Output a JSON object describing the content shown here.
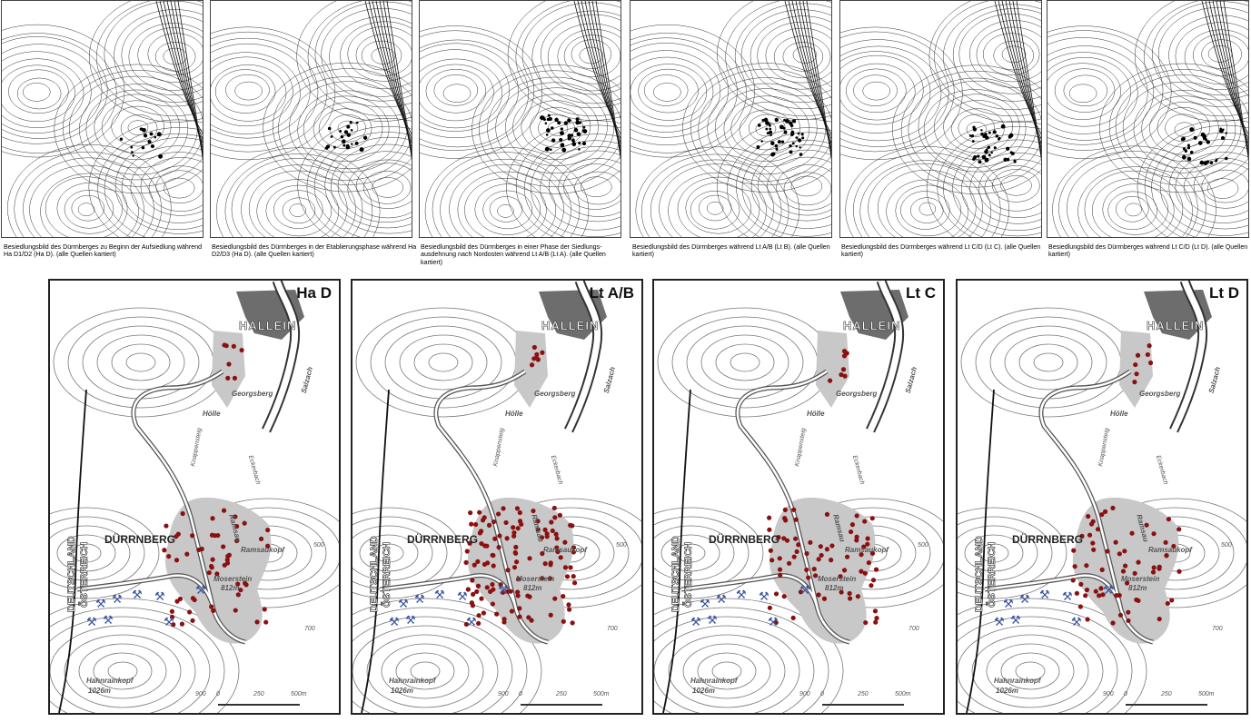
{
  "top_panels": [
    {
      "caption": "Besiedlungsbild des Dürrnberges zu Beginn der Aufsiedlung während Ha D1/D2 (Ha D). (alle Quellen kartiert)"
    },
    {
      "caption": "Besiedlungsbild des Dürrnberges in der Etablierungsphase während Ha D2/D3 (Ha D). (alle Quellen kartiert)"
    },
    {
      "caption": "Besiedlungsbild des Dürrnberges in einer Phase der Siedlungs-ausdehnung nach Nordosten während Lt A/B (Lt A). (alle Quellen kartiert)"
    },
    {
      "caption": "Besiedlungsbild des Dürrnberges während Lt A/B (Lt B). (alle Quellen kartiert)"
    },
    {
      "caption": "Besiedlungsbild des Dürrnberges während Lt C/D (Lt C). (alle Quellen kartiert)"
    },
    {
      "caption": "Besiedlungsbild des Dürrnberges während Lt C/D (Lt D). (alle Quellen kartiert)"
    }
  ],
  "maps": [
    {
      "period": "Ha D"
    },
    {
      "period": "Lt A/B"
    },
    {
      "period": "Lt C"
    },
    {
      "period": "Lt D"
    }
  ],
  "labels": {
    "hallein": "HALLEIN",
    "georgsberg": "Georgsberg",
    "hoelle": "Hölle",
    "salzach": "Salzach",
    "duerrnberg": "DÜRRNBERG",
    "deutschland": "DEUTSCHLAND",
    "oesterreich": "ÖSTERREICH",
    "ramsaukopf": "Ramsaukopf",
    "ramsau": "Ramsau",
    "moserstein": "Moserstein",
    "moserstein_elev": "812m",
    "hahnrainkopf": "Hahnrainkopf",
    "hahnrainkopf_elev": "1026m",
    "knappensteig": "Knappensteig",
    "eckerbach": "Eckerbach",
    "contour_900": "900",
    "contour_700": "700",
    "contour_500": "500",
    "scale_0": "0",
    "scale_250": "250",
    "scale_500": "500m",
    "mine_symbol": "⚒"
  },
  "colors": {
    "dot": "#8b1010",
    "settlement_gray": "#c8c8c8",
    "town_gray": "#6d6d6d",
    "contour": "#777777",
    "mine": "#3b55a0"
  }
}
